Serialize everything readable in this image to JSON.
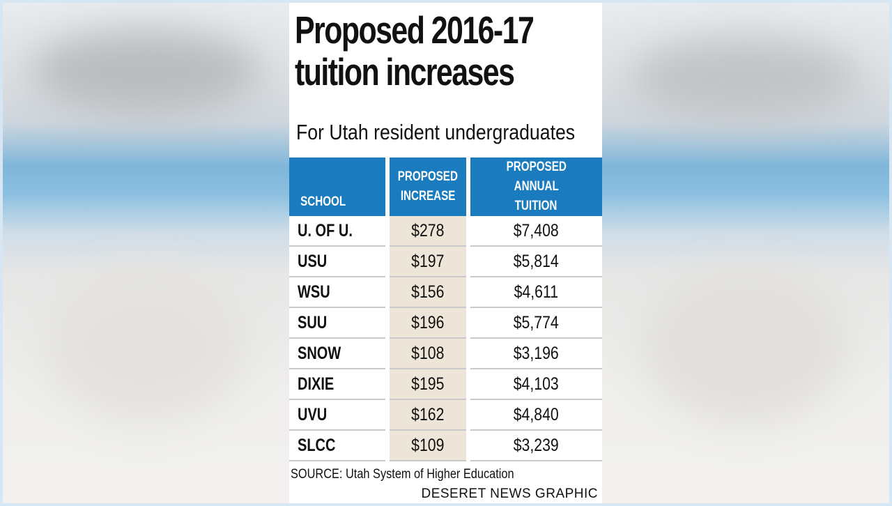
{
  "chart_data": {
    "type": "table",
    "title_line1": "Proposed 2016-17",
    "title_line2": "tuition increases",
    "subtitle": "For Utah resident undergraduates",
    "columns": [
      "SCHOOL",
      "PROPOSED INCREASE",
      "PROPOSED ANNUAL TUITION"
    ],
    "column_lines": {
      "school": [
        "SCHOOL"
      ],
      "increase": [
        "PROPOSED",
        "INCREASE"
      ],
      "tuition": [
        "PROPOSED ANNUAL",
        "TUITION"
      ]
    },
    "rows": [
      {
        "school": "U. OF U.",
        "increase": "$278",
        "tuition": "$7,408"
      },
      {
        "school": "USU",
        "increase": "$197",
        "tuition": "$5,814"
      },
      {
        "school": "WSU",
        "increase": "$156",
        "tuition": "$4,611"
      },
      {
        "school": "SUU",
        "increase": "$196",
        "tuition": "$5,774"
      },
      {
        "school": "SNOW",
        "increase": "$108",
        "tuition": "$3,196"
      },
      {
        "school": "DIXIE",
        "increase": "$195",
        "tuition": "$4,103"
      },
      {
        "school": "UVU",
        "increase": "$162",
        "tuition": "$4,840"
      },
      {
        "school": "SLCC",
        "increase": "$109",
        "tuition": "$3,239"
      }
    ],
    "source": "SOURCE: Utah System of Higher Education",
    "credit": "DESERET NEWS GRAPHIC"
  },
  "colors": {
    "header_bg": "#1a7bbf",
    "increase_column_bg": "#ece5d8"
  }
}
